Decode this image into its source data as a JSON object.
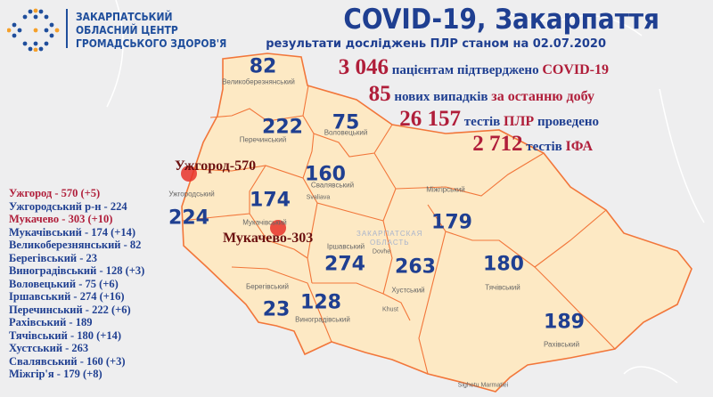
{
  "header": {
    "org_lines": [
      "ЗАКАРПАТСЬКИЙ",
      "ОБЛАСНИЙ ЦЕНТР",
      "ГРОМАДСЬКОГО ЗДОРОВ'Я"
    ],
    "title": "COVID-19, Закарпаття",
    "subtitle": "результати досліджень ПЛР станом на  02.07.2020"
  },
  "stats": {
    "confirmed": {
      "value": "3 046",
      "text": "пацієнтам підтверджено",
      "highlight": "COVID-19"
    },
    "new_cases": {
      "value": "85",
      "text": "нових випадків",
      "highlight": "за останню добу"
    },
    "pcr_tests": {
      "value": "26 157",
      "text": "тестів",
      "highlight": "ПЛР",
      "text2": "проведено"
    },
    "ifa_tests": {
      "value": "2 712",
      "text": "тестів",
      "highlight": "ІФА"
    }
  },
  "legend": [
    {
      "label": "Ужгород - 570 (+5)",
      "highlight": true
    },
    {
      "label": "Ужгородський р-н - 224",
      "highlight": false
    },
    {
      "label": "Мукачево - 303 (+10)",
      "highlight": true
    },
    {
      "label": "Мукачівський - 174 (+14)",
      "highlight": false
    },
    {
      "label": "Великоберезнянський - 82",
      "highlight": false
    },
    {
      "label": "Берегівський - 23",
      "highlight": false
    },
    {
      "label": "Виноградівський - 128 (+3)",
      "highlight": false
    },
    {
      "label": "Воловецький - 75 (+6)",
      "highlight": false
    },
    {
      "label": "Іршавський - 274 (+16)",
      "highlight": false
    },
    {
      "label": "Перечинський - 222 (+6)",
      "highlight": false
    },
    {
      "label": "Рахівський - 189",
      "highlight": false
    },
    {
      "label": "Тячівський - 180 (+14)",
      "highlight": false
    },
    {
      "label": "Хустський - 263",
      "highlight": false
    },
    {
      "label": "Свалявський - 160 (+3)",
      "highlight": false
    },
    {
      "label": "Міжгір'я - 179 (+8)",
      "highlight": false
    }
  ],
  "map": {
    "districts": [
      {
        "name": "Великоберезнянський",
        "count": "82"
      },
      {
        "name": "Перечинський",
        "count": "222"
      },
      {
        "name": "Воловецький",
        "count": "75"
      },
      {
        "name": "Свалявський",
        "count": "160"
      },
      {
        "name": "Мукачівський",
        "count": "174"
      },
      {
        "name": "Ужгородський",
        "count": "224"
      },
      {
        "name": "Міжгірський",
        "count": "179"
      },
      {
        "name": "Іршавський",
        "count": "274"
      },
      {
        "name": "Хустський",
        "count": "263"
      },
      {
        "name": "Тячівський",
        "count": "180"
      },
      {
        "name": "Рахівський",
        "count": "189"
      },
      {
        "name": "Берегівський",
        "count": "23"
      },
      {
        "name": "Виноградівський",
        "count": "128"
      }
    ],
    "cities": [
      {
        "label": "Ужгород-570"
      },
      {
        "label": "Мукачево-303"
      }
    ],
    "towns": [
      "Svaliava",
      "Dovhe",
      "Khust",
      "Sighetu Marmatiei"
    ],
    "oblast_label": [
      "ЗАКАРПАТСКАЯ",
      "ОБЛАСТЬ"
    ],
    "colors": {
      "region_fill": "#fde9c4",
      "border": "#f2763a",
      "hotspot": "#e8322a",
      "number": "#1f3f91",
      "accent": "#b01e3a"
    }
  }
}
